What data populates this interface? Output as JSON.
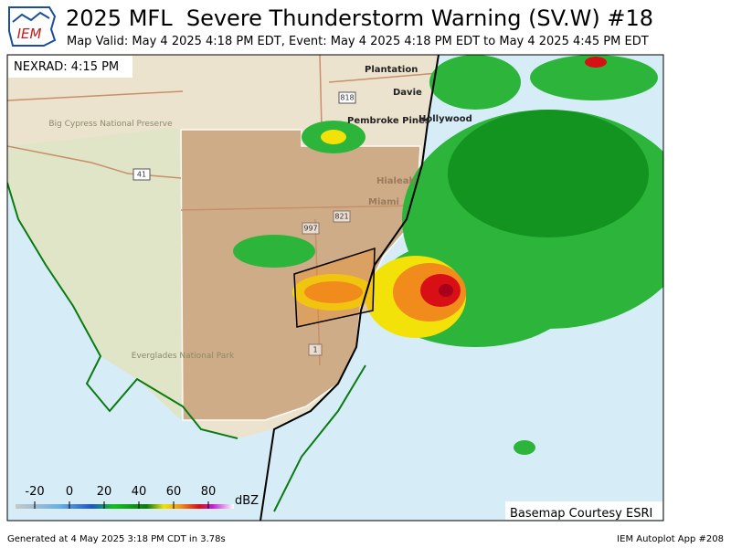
{
  "header": {
    "logo": "IEM",
    "title": "2025 MFL  Severe Thunderstorm Warning (SV.W) #18",
    "subtitle": "Map Valid: May 4 2025 4:18 PM EDT, Event: May 4 2025 4:18 PM EDT to May 4 2025 4:45 PM EDT"
  },
  "map": {
    "radar_label": "NEXRAD: 4:15 PM",
    "places": [
      "Plantation",
      "Davie",
      "Pembroke Pines",
      "Hollywood",
      "Hialeah",
      "Miami"
    ],
    "parks": [
      "Big Cypress National Preserve",
      "Everglades National Park"
    ],
    "roads": [
      "818",
      "41",
      "821",
      "997",
      "1"
    ],
    "credit": "Basemap Courtesy ESRI"
  },
  "colorbar": {
    "ticks": [
      -20,
      0,
      20,
      40,
      60,
      80
    ],
    "unit": "dBZ"
  },
  "footer": {
    "left": "Generated at 4 May 2025 3:18 PM CDT in 3.78s",
    "right": "IEM Autoplot App #208"
  }
}
